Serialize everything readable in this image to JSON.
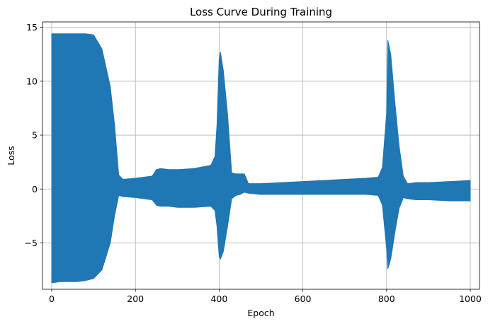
{
  "chart_data": {
    "type": "line",
    "title": "Loss Curve During Training",
    "xlabel": "Epoch",
    "ylabel": "Loss",
    "xlim": [
      -22,
      1022
    ],
    "ylim": [
      -9.3,
      15.5
    ],
    "xticks": [
      0,
      200,
      400,
      600,
      800,
      1000
    ],
    "xtick_labels": [
      "0",
      "200",
      "400",
      "600",
      "800",
      "1000"
    ],
    "yticks": [
      -5,
      0,
      5,
      10,
      15
    ],
    "ytick_labels": [
      "−5",
      "0",
      "5",
      "10",
      "15"
    ],
    "grid": true,
    "legend": false,
    "colors": {
      "series": "#1f77b4",
      "grid": "#b0b0b0",
      "axes": "#000000"
    },
    "series": [
      {
        "envelope_x": [
          0,
          20,
          40,
          60,
          80,
          100,
          120,
          140,
          150,
          160,
          170,
          200,
          240,
          250,
          260,
          280,
          300,
          340,
          380,
          390,
          395,
          400,
          403,
          410,
          420,
          430,
          440,
          450,
          460,
          470,
          500,
          550,
          600,
          650,
          700,
          750,
          780,
          790,
          800,
          803,
          810,
          820,
          830,
          840,
          850,
          870,
          900,
          950,
          1000
        ],
        "upper": [
          14.4,
          14.4,
          14.4,
          14.4,
          14.4,
          14.3,
          13.0,
          9.5,
          6.0,
          1.3,
          0.9,
          1.0,
          1.2,
          1.8,
          1.9,
          1.8,
          1.8,
          1.9,
          2.2,
          3.0,
          6.0,
          12.0,
          12.7,
          11.0,
          7.0,
          1.5,
          1.4,
          1.4,
          1.4,
          0.5,
          0.5,
          0.6,
          0.7,
          0.8,
          0.9,
          1.0,
          1.1,
          2.0,
          7.0,
          13.8,
          12.5,
          8.0,
          4.0,
          1.2,
          0.5,
          0.6,
          0.6,
          0.7,
          0.8
        ],
        "lower": [
          -8.7,
          -8.6,
          -8.6,
          -8.6,
          -8.5,
          -8.3,
          -7.5,
          -5.0,
          -2.5,
          -0.6,
          -0.7,
          -0.8,
          -1.0,
          -1.5,
          -1.6,
          -1.6,
          -1.7,
          -1.7,
          -1.6,
          -2.0,
          -3.5,
          -6.2,
          -6.5,
          -5.8,
          -3.5,
          -0.9,
          -0.6,
          -0.5,
          -0.3,
          -0.4,
          -0.5,
          -0.5,
          -0.5,
          -0.5,
          -0.5,
          -0.5,
          -0.6,
          -1.5,
          -5.5,
          -7.4,
          -6.5,
          -4.0,
          -1.8,
          -0.8,
          -0.9,
          -1.0,
          -1.0,
          -1.1,
          -1.1
        ]
      }
    ]
  }
}
